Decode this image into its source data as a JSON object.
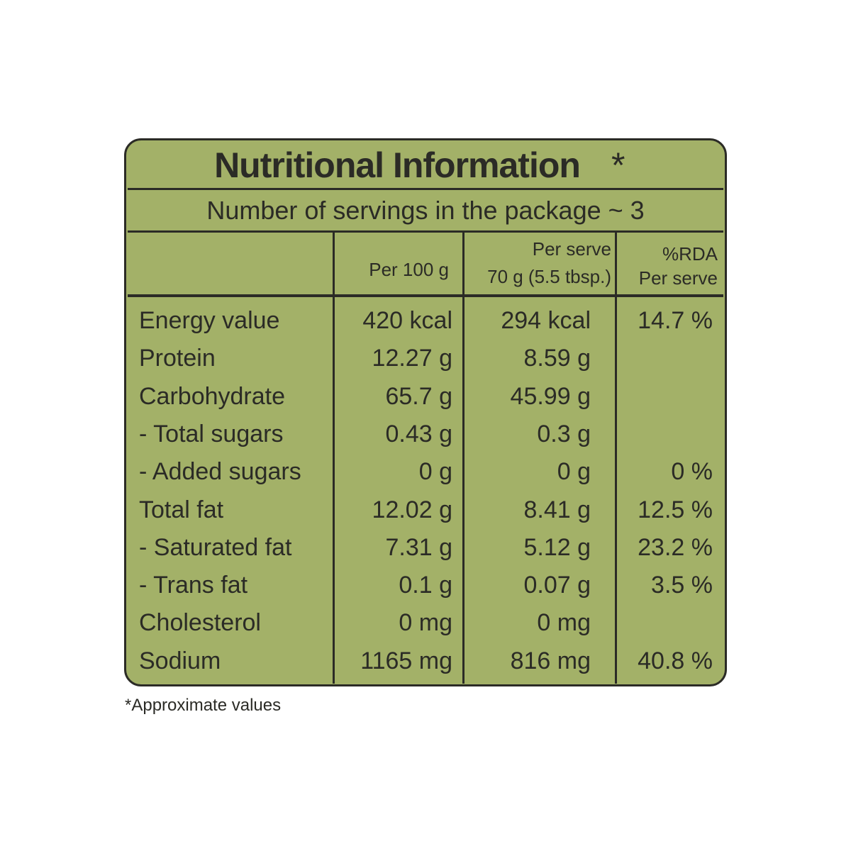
{
  "header": {
    "title": "Nutritional Information",
    "title_mark": "*",
    "servings": "Number of servings in the package ~ 3"
  },
  "table": {
    "columns": {
      "per_100g": "Per 100 g",
      "per_serve": [
        "Per serve",
        "70 g (5.5 tbsp.)"
      ],
      "rda": [
        "%RDA",
        "Per serve"
      ]
    },
    "rows": [
      {
        "nutrient": "Energy value",
        "per_100g": "420 kcal",
        "per_serve": "294 kcal",
        "rda": "14.7 %"
      },
      {
        "nutrient": "Protein",
        "per_100g": "12.27 g",
        "per_serve": "8.59 g"
      },
      {
        "nutrient": "Carbohydrate",
        "per_100g": "65.7 g",
        "per_serve": "45.99 g"
      },
      {
        "nutrient": "- Total sugars",
        "per_100g": "0.43 g",
        "per_serve": "0.3 g"
      },
      {
        "nutrient": "- Added sugars",
        "per_100g": "0 g",
        "per_serve": "0 g",
        "rda": "0 %"
      },
      {
        "nutrient": "Total fat",
        "per_100g": "12.02 g",
        "per_serve": "8.41 g",
        "rda": "12.5 %"
      },
      {
        "nutrient": "- Saturated fat",
        "per_100g": "7.31 g",
        "per_serve": "5.12 g",
        "rda": "23.2 %"
      },
      {
        "nutrient": "- Trans fat",
        "per_100g": "0.1 g",
        "per_serve": "0.07 g",
        "rda": "3.5 %"
      },
      {
        "nutrient": "Cholesterol",
        "per_100g": "0 mg",
        "per_serve": "0 mg"
      },
      {
        "nutrient": "Sodium",
        "per_100g": "1165 mg",
        "per_serve": "816 mg",
        "rda": "40.8 %"
      }
    ]
  },
  "footnote": "*Approximate values"
}
